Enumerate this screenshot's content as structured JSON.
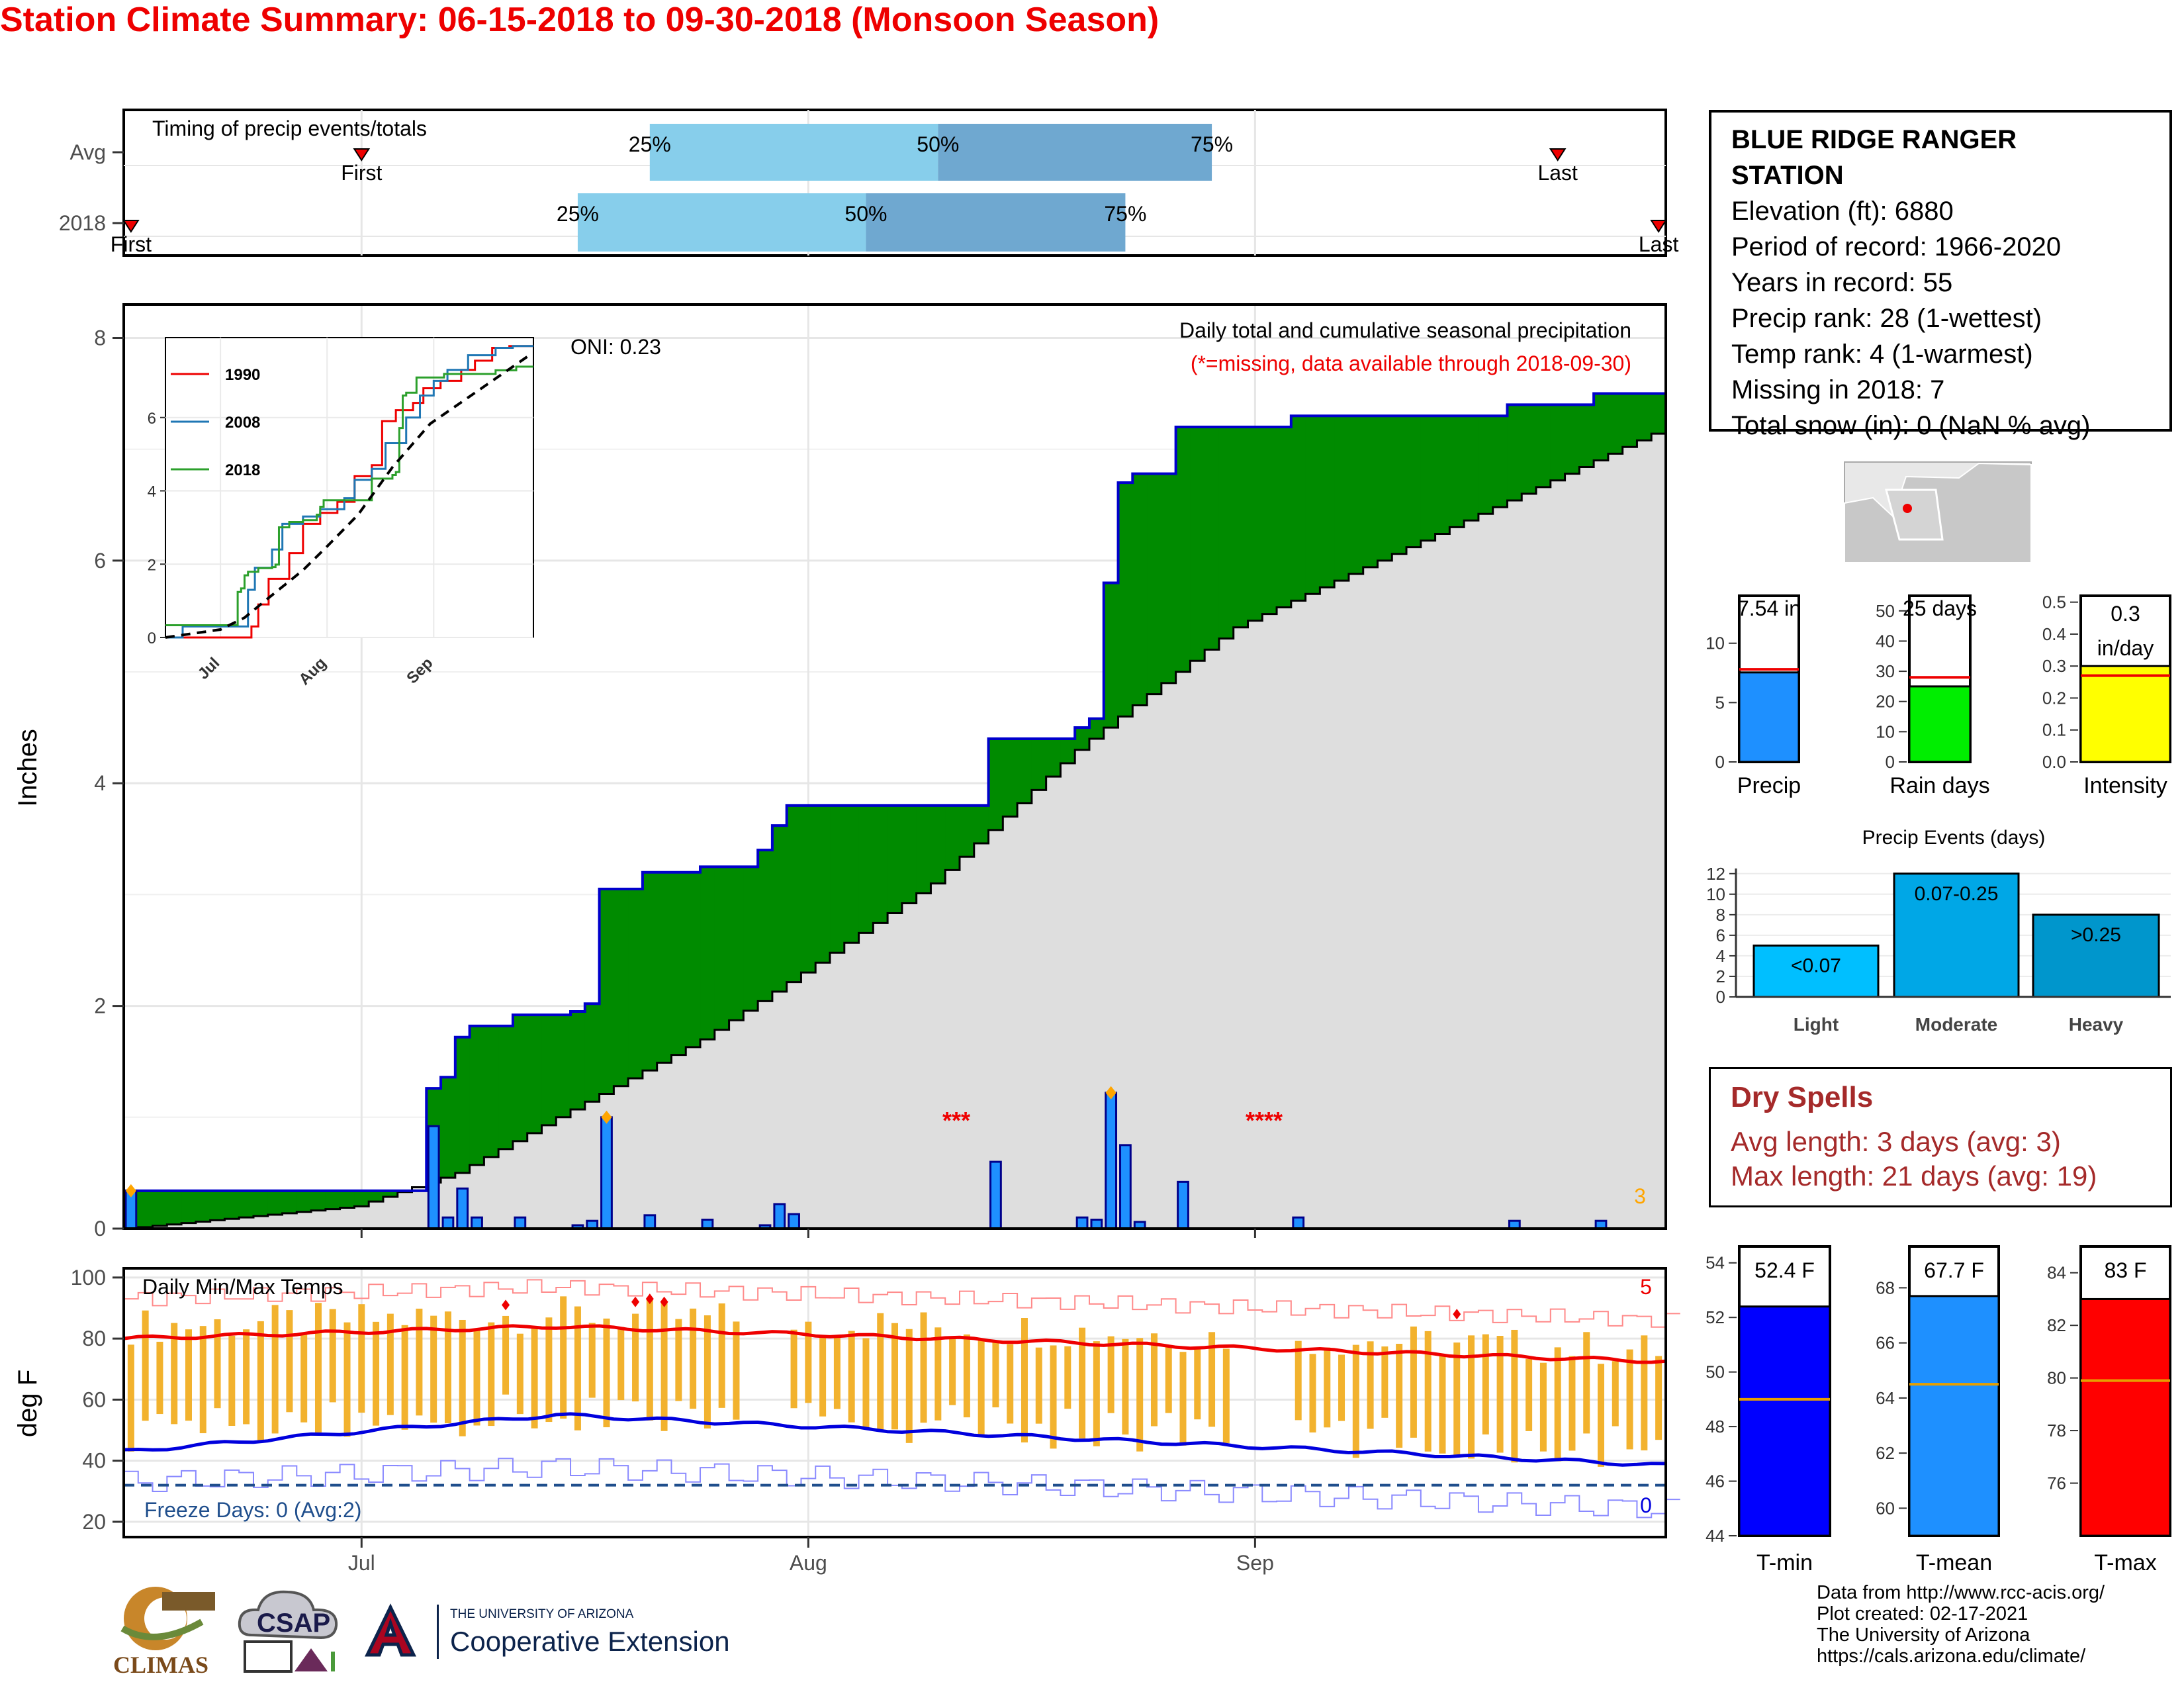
{
  "title": "Station Climate Summary: 06-15-2018 to 09-30-2018 (Monsoon Season)",
  "timing": {
    "label": "Timing of precip events/totals",
    "rows": [
      "Avg",
      "2018"
    ],
    "first_label": "First",
    "last_label": "Last",
    "p25": "25%",
    "p50": "50%",
    "p75": "75%"
  },
  "precip": {
    "ylabel": "Inches",
    "yticks": [
      "0",
      "2",
      "4",
      "6",
      "8"
    ],
    "header1": "Daily total and cumulative seasonal precipitation",
    "header2": "(*=missing, data available through 2018-09-30)",
    "oni": "ONI: 0.23",
    "missing_marks": [
      "***",
      "****"
    ],
    "count_label": "3"
  },
  "inset": {
    "legend": [
      "1990",
      "2008",
      "2018"
    ],
    "yticks": [
      "0",
      "2",
      "4",
      "6"
    ],
    "xticks": [
      "Jul",
      "Aug",
      "Sep"
    ]
  },
  "temps": {
    "label": "Daily Min/Max Temps",
    "ylabel": "deg F",
    "yticks": [
      "20",
      "40",
      "60",
      "80",
      "100"
    ],
    "xticks": [
      "Jul",
      "Aug",
      "Sep"
    ],
    "freeze": "Freeze Days: 0 (Avg:2)",
    "count_top": "5",
    "count_bottom": "0"
  },
  "station": {
    "name_line1": "BLUE RIDGE RANGER",
    "name_line2": "STATION",
    "elevation": "Elevation (ft): 6880",
    "period": "Period of record: 1966-2020",
    "years": "Years in record: 55",
    "precip_rank": "Precip rank: 28 (1-wettest)",
    "temp_rank": "Temp rank: 4 (1-warmest)",
    "missing": "Missing in 2018: 7",
    "snow": "Total snow (in): 0 (NaN % avg)"
  },
  "summary_bars": [
    {
      "label": "Precip",
      "value_text": "7.54 in",
      "value": 7.54,
      "avg": 7.8,
      "max": 14,
      "ticks": [
        "0",
        "5",
        "10"
      ],
      "tickvals": [
        0,
        5,
        10
      ],
      "color": "#1e90ff"
    },
    {
      "label": "Rain days",
      "value_text": "25 days",
      "value": 25,
      "avg": 28,
      "max": 55,
      "ticks": [
        "0",
        "10",
        "20",
        "30",
        "40",
        "50"
      ],
      "tickvals": [
        0,
        10,
        20,
        30,
        40,
        50
      ],
      "color": "#00ee00"
    },
    {
      "label": "Intensity",
      "value_text1": "0.3",
      "value_text2": "in/day",
      "value": 0.3,
      "avg": 0.27,
      "max": 0.52,
      "ticks": [
        "0.0",
        "0.1",
        "0.2",
        "0.3",
        "0.4",
        "0.5"
      ],
      "tickvals": [
        0,
        0.1,
        0.2,
        0.3,
        0.4,
        0.5
      ],
      "color": "#ffff00"
    }
  ],
  "events": {
    "title": "Precip Events (days)",
    "yticks": [
      "0",
      "2",
      "4",
      "6",
      "8",
      "10",
      "12"
    ],
    "bars": [
      {
        "label": "Light",
        "text": "<0.07",
        "value": 5,
        "color": "#00bfff"
      },
      {
        "label": "Moderate",
        "text": "0.07-0.25",
        "value": 12,
        "color": "#00a7e6"
      },
      {
        "label": "Heavy",
        "text": ">0.25",
        "value": 8,
        "color": "#0096cc"
      }
    ]
  },
  "dry_spells": {
    "title": "Dry Spells",
    "avg": "Avg length: 3 days (avg: 3)",
    "max": "Max length: 21 days (avg: 19)"
  },
  "temp_bars": [
    {
      "label": "T-min",
      "value_text": "52.4 F",
      "value": 52.4,
      "avg": 49,
      "min": 44,
      "max": 54.6,
      "ticks": [
        "44",
        "46",
        "48",
        "50",
        "52",
        "54"
      ],
      "tickvals": [
        44,
        46,
        48,
        50,
        52,
        54
      ],
      "color": "#0000ff"
    },
    {
      "label": "T-mean",
      "value_text": "67.7 F",
      "value": 67.7,
      "avg": 64.5,
      "min": 59,
      "max": 69.5,
      "ticks": [
        "60",
        "62",
        "64",
        "66",
        "68"
      ],
      "tickvals": [
        60,
        62,
        64,
        66,
        68
      ],
      "color": "#1e90ff"
    },
    {
      "label": "T-max",
      "value_text": "83 F",
      "value": 83,
      "avg": 79.9,
      "min": 74,
      "max": 85,
      "ticks": [
        "76",
        "78",
        "80",
        "82",
        "84"
      ],
      "tickvals": [
        76,
        78,
        80,
        82,
        84
      ],
      "color": "#ff0000"
    }
  ],
  "footer": {
    "line1": "Data from http://www.rcc-acis.org/",
    "line2": "Plot created: 02-17-2021",
    "line3": "The University of Arizona",
    "line4": "https://cals.arizona.edu/climate/"
  },
  "logos": {
    "climas": "CLIMAS",
    "csap": "CSAP",
    "ua_small": "THE UNIVERSITY OF ARIZONA",
    "ua_big": "Cooperative Extension"
  },
  "chart_data": {
    "type": "area",
    "title": "Daily total and cumulative seasonal precipitation",
    "ylabel": "Inches",
    "ylim": [
      0,
      8.3
    ],
    "x_start": "2018-06-15",
    "x_end": "2018-09-30",
    "daily_precip": [
      {
        "date": "2018-06-15",
        "value": 0.34
      },
      {
        "date": "2018-07-06",
        "value": 0.92
      },
      {
        "date": "2018-07-07",
        "value": 0.1
      },
      {
        "date": "2018-07-08",
        "value": 0.36
      },
      {
        "date": "2018-07-09",
        "value": 0.1
      },
      {
        "date": "2018-07-12",
        "value": 0.1
      },
      {
        "date": "2018-07-16",
        "value": 0.03
      },
      {
        "date": "2018-07-17",
        "value": 0.07
      },
      {
        "date": "2018-07-18",
        "value": 1.0
      },
      {
        "date": "2018-07-21",
        "value": 0.12
      },
      {
        "date": "2018-07-25",
        "value": 0.08
      },
      {
        "date": "2018-07-29",
        "value": 0.03
      },
      {
        "date": "2018-07-30",
        "value": 0.22
      },
      {
        "date": "2018-07-31",
        "value": 0.13
      },
      {
        "date": "2018-08-14",
        "value": 0.6
      },
      {
        "date": "2018-08-20",
        "value": 0.1
      },
      {
        "date": "2018-08-21",
        "value": 0.08
      },
      {
        "date": "2018-08-22",
        "value": 1.22
      },
      {
        "date": "2018-08-23",
        "value": 0.75
      },
      {
        "date": "2018-08-24",
        "value": 0.06
      },
      {
        "date": "2018-08-27",
        "value": 0.42
      },
      {
        "date": "2018-09-04",
        "value": 0.1
      },
      {
        "date": "2018-09-19",
        "value": 0.07
      },
      {
        "date": "2018-09-25",
        "value": 0.07
      }
    ],
    "cumulative_2018": [
      {
        "date": "2018-06-15",
        "value": 0.34
      },
      {
        "date": "2018-07-06",
        "value": 1.26
      },
      {
        "date": "2018-07-07",
        "value": 1.36
      },
      {
        "date": "2018-07-08",
        "value": 1.72
      },
      {
        "date": "2018-07-09",
        "value": 1.82
      },
      {
        "date": "2018-07-12",
        "value": 1.92
      },
      {
        "date": "2018-07-16",
        "value": 1.95
      },
      {
        "date": "2018-07-17",
        "value": 2.02
      },
      {
        "date": "2018-07-18",
        "value": 3.05
      },
      {
        "date": "2018-07-21",
        "value": 3.2
      },
      {
        "date": "2018-07-25",
        "value": 3.25
      },
      {
        "date": "2018-07-29",
        "value": 3.4
      },
      {
        "date": "2018-07-30",
        "value": 3.62
      },
      {
        "date": "2018-07-31",
        "value": 3.8
      },
      {
        "date": "2018-08-14",
        "value": 4.4
      },
      {
        "date": "2018-08-20",
        "value": 4.5
      },
      {
        "date": "2018-08-21",
        "value": 4.58
      },
      {
        "date": "2018-08-22",
        "value": 5.8
      },
      {
        "date": "2018-08-23",
        "value": 6.7
      },
      {
        "date": "2018-08-24",
        "value": 6.78
      },
      {
        "date": "2018-08-27",
        "value": 7.2
      },
      {
        "date": "2018-09-04",
        "value": 7.3
      },
      {
        "date": "2018-09-19",
        "value": 7.4
      },
      {
        "date": "2018-09-25",
        "value": 7.5
      }
    ],
    "cumulative_avg": [
      {
        "date": "2018-06-15",
        "value": 0.0
      },
      {
        "date": "2018-07-01",
        "value": 0.2
      },
      {
        "date": "2018-07-08",
        "value": 0.5
      },
      {
        "date": "2018-07-15",
        "value": 1.0
      },
      {
        "date": "2018-07-25",
        "value": 1.7
      },
      {
        "date": "2018-08-01",
        "value": 2.3
      },
      {
        "date": "2018-08-10",
        "value": 3.1
      },
      {
        "date": "2018-08-20",
        "value": 4.3
      },
      {
        "date": "2018-08-31",
        "value": 5.4
      },
      {
        "date": "2018-09-10",
        "value": 6.0
      },
      {
        "date": "2018-09-20",
        "value": 6.6
      },
      {
        "date": "2018-09-30",
        "value": 7.2
      }
    ],
    "temperature": {
      "ylabel": "deg F",
      "ylim": [
        15,
        103
      ],
      "avg_max_start": 80,
      "avg_max_peak": 84,
      "avg_max_end": 72.5,
      "avg_min_start": 43,
      "avg_min_peak": 55,
      "avg_min_end": 38.5,
      "freeze_line": 32
    }
  }
}
